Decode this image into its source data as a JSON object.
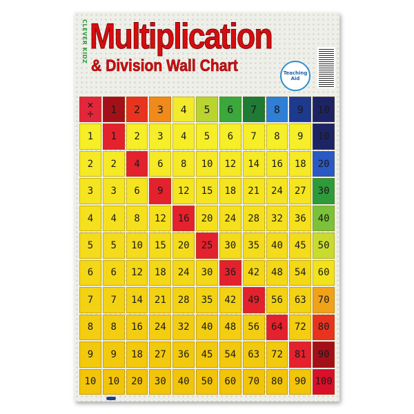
{
  "poster": {
    "brand": "CLEVER KIDZ",
    "title": "Multiplication",
    "subtitle": "& Division Wall Chart",
    "badge": "Teaching Aid"
  },
  "table": {
    "corner_symbols": [
      "×",
      "÷"
    ],
    "header": [
      "1",
      "2",
      "3",
      "4",
      "5",
      "6",
      "7",
      "8",
      "9",
      "10"
    ],
    "header_colors": [
      "#a4101a",
      "#e8331f",
      "#f08a1a",
      "#f2ea2a",
      "#b9d431",
      "#3aa83a",
      "#1f7a35",
      "#2f7fd6",
      "#1e3a8f",
      "#1d2466"
    ],
    "corner_color": "#e3263a",
    "last_column_colors": [
      "#1d2466",
      "#2a58c4",
      "#2f9a3a",
      "#7bc23a",
      "#c9dc2e",
      "#f2e21c",
      "#f0a21a",
      "#e8331f",
      "#a4101a",
      "#d8102a"
    ],
    "diagonal_color": "#e3222e",
    "rows": [
      [
        "1",
        "1",
        "2",
        "3",
        "4",
        "5",
        "6",
        "7",
        "8",
        "9",
        "10"
      ],
      [
        "2",
        "2",
        "4",
        "6",
        "8",
        "10",
        "12",
        "14",
        "16",
        "18",
        "20"
      ],
      [
        "3",
        "3",
        "6",
        "9",
        "12",
        "15",
        "18",
        "21",
        "24",
        "27",
        "30"
      ],
      [
        "4",
        "4",
        "8",
        "12",
        "16",
        "20",
        "24",
        "28",
        "32",
        "36",
        "40"
      ],
      [
        "5",
        "5",
        "10",
        "15",
        "20",
        "25",
        "30",
        "35",
        "40",
        "45",
        "50"
      ],
      [
        "6",
        "6",
        "12",
        "18",
        "24",
        "30",
        "36",
        "42",
        "48",
        "54",
        "60"
      ],
      [
        "7",
        "7",
        "14",
        "21",
        "28",
        "35",
        "42",
        "49",
        "56",
        "63",
        "70"
      ],
      [
        "8",
        "8",
        "16",
        "24",
        "32",
        "40",
        "48",
        "56",
        "64",
        "72",
        "80"
      ],
      [
        "9",
        "9",
        "18",
        "27",
        "36",
        "45",
        "54",
        "63",
        "72",
        "81",
        "90"
      ],
      [
        "10",
        "10",
        "20",
        "30",
        "40",
        "50",
        "60",
        "70",
        "80",
        "90",
        "100"
      ]
    ]
  }
}
